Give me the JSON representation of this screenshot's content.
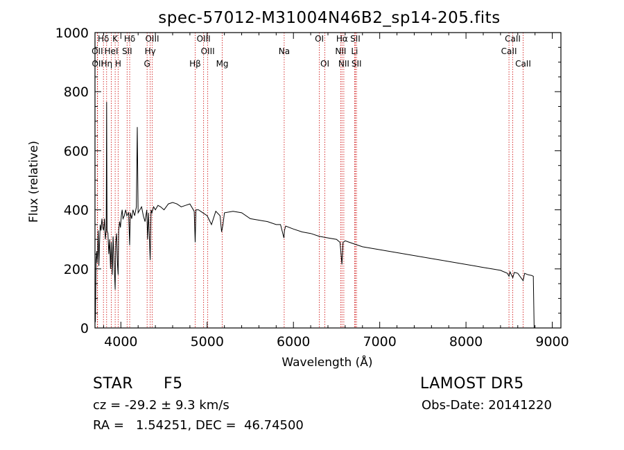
{
  "chart_data": {
    "type": "line",
    "title": "spec-57012-M31004N46B2_sp14-205.fits",
    "xlabel": "Wavelength (Å)",
    "ylabel": "Flux (relative)",
    "xlim": [
      3700,
      9100
    ],
    "ylim": [
      0,
      1000
    ],
    "x_ticks": [
      4000,
      5000,
      6000,
      7000,
      8000,
      9000
    ],
    "y_ticks": [
      0,
      200,
      400,
      600,
      800,
      1000
    ],
    "line_color": "#000000",
    "marker_color": "#cc0000",
    "spectrum": {
      "x": [
        3700,
        3705,
        3712,
        3720,
        3725,
        3730,
        3738,
        3745,
        3752,
        3760,
        3770,
        3780,
        3790,
        3800,
        3810,
        3820,
        3830,
        3835,
        3840,
        3850,
        3860,
        3870,
        3880,
        3889,
        3900,
        3910,
        3920,
        3930,
        3934,
        3940,
        3950,
        3960,
        3968,
        3975,
        3985,
        3995,
        4005,
        4015,
        4025,
        4040,
        4055,
        4070,
        4090,
        4102,
        4110,
        4125,
        4140,
        4160,
        4180,
        4190,
        4200,
        4220,
        4240,
        4260,
        4280,
        4300,
        4310,
        4320,
        4340,
        4350,
        4360,
        4380,
        4400,
        4430,
        4460,
        4500,
        4550,
        4600,
        4650,
        4700,
        4750,
        4800,
        4850,
        4861,
        4870,
        4900,
        4950,
        5000,
        5050,
        5100,
        5150,
        5167,
        5183,
        5200,
        5300,
        5400,
        5500,
        5600,
        5700,
        5800,
        5850,
        5890,
        5896,
        5910,
        6000,
        6100,
        6200,
        6300,
        6400,
        6500,
        6540,
        6562,
        6575,
        6600,
        6650,
        6700,
        6800,
        6900,
        7000,
        7100,
        7200,
        7300,
        7400,
        7500,
        7600,
        7700,
        7800,
        7900,
        8000,
        8100,
        8200,
        8300,
        8400,
        8480,
        8498,
        8510,
        8542,
        8560,
        8600,
        8662,
        8680,
        8720,
        8760,
        8780,
        8790,
        8800,
        8820,
        8850,
        8880
      ],
      "y": [
        120,
        20,
        230,
        260,
        220,
        250,
        330,
        210,
        280,
        350,
        330,
        370,
        340,
        330,
        370,
        300,
        330,
        765,
        330,
        320,
        250,
        300,
        200,
        290,
        180,
        310,
        230,
        160,
        130,
        290,
        320,
        220,
        180,
        330,
        360,
        340,
        380,
        400,
        370,
        380,
        400,
        380,
        390,
        280,
        390,
        370,
        400,
        380,
        410,
        680,
        390,
        400,
        410,
        380,
        360,
        400,
        300,
        390,
        230,
        400,
        390,
        410,
        400,
        415,
        410,
        400,
        420,
        425,
        420,
        410,
        415,
        420,
        395,
        290,
        400,
        400,
        390,
        380,
        350,
        395,
        380,
        325,
        350,
        390,
        395,
        390,
        370,
        365,
        360,
        350,
        350,
        305,
        330,
        345,
        335,
        325,
        320,
        310,
        305,
        300,
        290,
        215,
        290,
        295,
        290,
        285,
        275,
        270,
        265,
        260,
        255,
        250,
        245,
        240,
        235,
        230,
        225,
        220,
        215,
        210,
        205,
        200,
        195,
        185,
        175,
        190,
        170,
        188,
        185,
        160,
        185,
        180,
        178,
        175,
        0,
        0,
        0,
        0,
        0
      ]
    },
    "spectral_lines": [
      {
        "name": "Hδ",
        "wavelength": 3798,
        "row": 1
      },
      {
        "name": "OII",
        "wavelength": 3727,
        "row": 2
      },
      {
        "name": "OII",
        "wavelength": 3730,
        "row": 3
      },
      {
        "name": "Hη",
        "wavelength": 3835,
        "row": 3
      },
      {
        "name": "K",
        "wavelength": 3934,
        "row": 1
      },
      {
        "name": "HeI",
        "wavelength": 3889,
        "row": 2
      },
      {
        "name": "H",
        "wavelength": 3968,
        "row": 3
      },
      {
        "name": "SII",
        "wavelength": 4072,
        "row": 2
      },
      {
        "name": "Hδ",
        "wavelength": 4102,
        "row": 1
      },
      {
        "name": "OIII",
        "wavelength": 4363,
        "row": 1
      },
      {
        "name": "Hγ",
        "wavelength": 4340,
        "row": 2
      },
      {
        "name": "G",
        "wavelength": 4304,
        "row": 3
      },
      {
        "name": "Hβ",
        "wavelength": 4861,
        "row": 3
      },
      {
        "name": "OIII",
        "wavelength": 4959,
        "row": 1
      },
      {
        "name": "OIII",
        "wavelength": 5007,
        "row": 2
      },
      {
        "name": "Mg",
        "wavelength": 5175,
        "row": 3
      },
      {
        "name": "Na",
        "wavelength": 5893,
        "row": 2
      },
      {
        "name": "OI",
        "wavelength": 6300,
        "row": 1
      },
      {
        "name": "OI",
        "wavelength": 6364,
        "row": 3
      },
      {
        "name": "Hα",
        "wavelength": 6563,
        "row": 1
      },
      {
        "name": "NII",
        "wavelength": 6548,
        "row": 2
      },
      {
        "name": "NII",
        "wavelength": 6584,
        "row": 3
      },
      {
        "name": "SII",
        "wavelength": 6717,
        "row": 1
      },
      {
        "name": "Li",
        "wavelength": 6708,
        "row": 2
      },
      {
        "name": "SII",
        "wavelength": 6731,
        "row": 3
      },
      {
        "name": "CaII",
        "wavelength": 8542,
        "row": 1
      },
      {
        "name": "CaII",
        "wavelength": 8498,
        "row": 2
      },
      {
        "name": "CaII",
        "wavelength": 8662,
        "row": 3
      }
    ]
  },
  "info": {
    "class": "STAR",
    "subclass": "F5",
    "survey": "LAMOST DR5",
    "cz": "cz = -29.2 ± 9.3 km/s",
    "obs_date": "Obs-Date: 20141220",
    "coords": "RA =   1.54251, DEC =  46.74500"
  }
}
